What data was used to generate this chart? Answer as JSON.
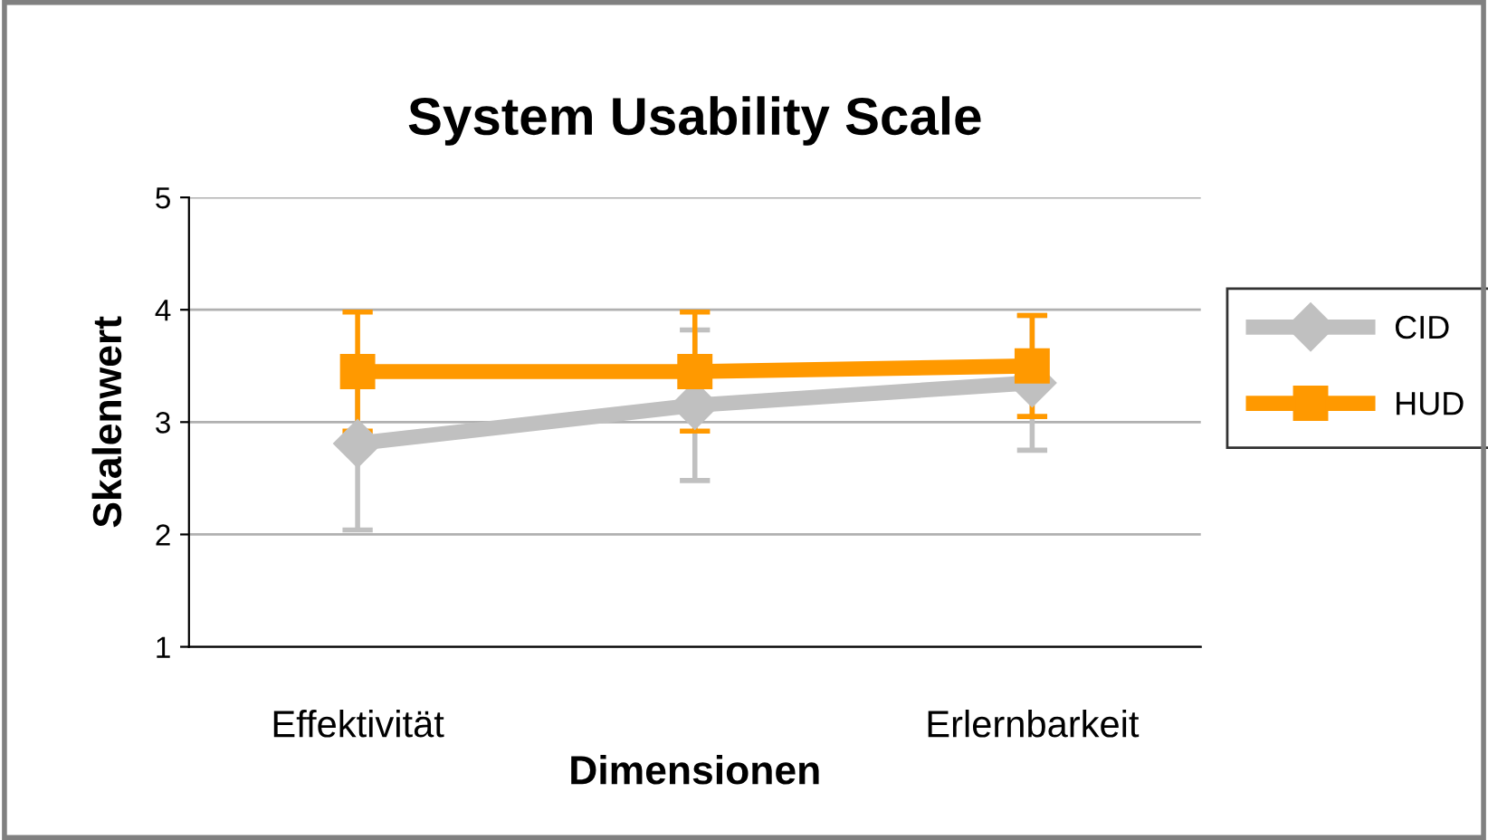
{
  "chart_data": {
    "type": "line",
    "title": "System Usability Scale",
    "xlabel": "Dimensionen",
    "ylabel": "Skalenwert",
    "categories": [
      "Effektivität",
      null,
      "Erlernbarkeit"
    ],
    "series": [
      {
        "name": "CID",
        "color": "#c0c0c0",
        "values": [
          2.81,
          3.15,
          3.35
        ],
        "errors": [
          0.77,
          0.67,
          0.6
        ],
        "marker": "diamond"
      },
      {
        "name": "HUD",
        "color": "#ff9900",
        "values": [
          3.45,
          3.45,
          3.5
        ],
        "errors": [
          0.53,
          0.53,
          0.45
        ],
        "marker": "square"
      }
    ],
    "ylim": [
      1,
      5
    ],
    "yticks": [
      1,
      2,
      3,
      4,
      5
    ],
    "grid": "y",
    "legend": "right",
    "line_style": "solid"
  }
}
